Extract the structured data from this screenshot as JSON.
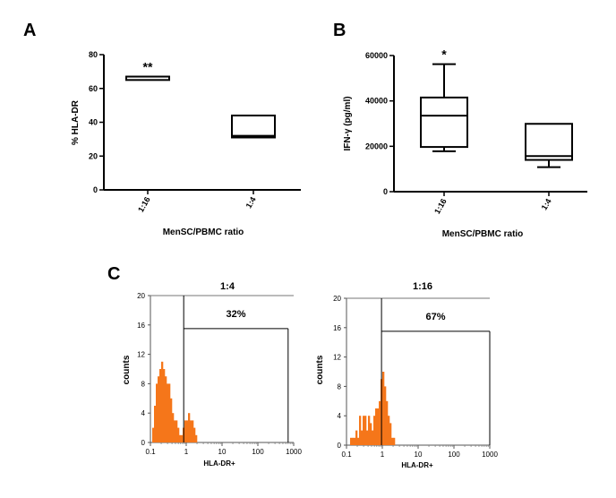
{
  "panels": {
    "a": "A",
    "b": "B",
    "c": "C"
  },
  "chart_data": [
    {
      "id": "A",
      "type": "box",
      "title": "",
      "ylabel": "% HLA-DR",
      "xlabel": "MenSC/PBMC ratio",
      "ylim": [
        0,
        80
      ],
      "yticks": [
        0,
        20,
        40,
        60,
        80
      ],
      "ytick_labels": [
        "0",
        "20",
        "40",
        "60",
        "80"
      ],
      "categories": [
        "1:16",
        "1:4"
      ],
      "boxes": [
        {
          "category": "1:16",
          "min": 65,
          "q1": 65,
          "median": 67,
          "q3": 67,
          "max": 67,
          "annotation": "**"
        },
        {
          "category": "1:4",
          "min": 31,
          "q1": 31,
          "median": 32,
          "q3": 44,
          "max": 44,
          "annotation": ""
        }
      ]
    },
    {
      "id": "B",
      "type": "box",
      "title": "",
      "ylabel": "IFN-γ (pg/ml)",
      "xlabel": "MenSC/PBMC ratio",
      "ylim": [
        0,
        60000
      ],
      "yticks": [
        0,
        20000,
        40000,
        60000
      ],
      "ytick_labels": [
        "0",
        "20000",
        "40000",
        "60000"
      ],
      "categories": [
        "1:16",
        "1:4"
      ],
      "boxes": [
        {
          "category": "1:16",
          "min": 17800,
          "q1": 19700,
          "median": 33500,
          "q3": 41500,
          "max": 56200,
          "annotation": "*"
        },
        {
          "category": "1:4",
          "min": 10800,
          "q1": 14000,
          "median": 15700,
          "q3": 29900,
          "max": 29900,
          "annotation": ""
        }
      ]
    },
    {
      "id": "C1",
      "type": "histogram",
      "title": "1:4",
      "xlabel": "HLA-DR+",
      "ylabel": "counts",
      "xscale": "log",
      "xlim": [
        0.1,
        1000
      ],
      "xtick_labels": [
        "0.1",
        "1",
        "10",
        "100",
        "1000"
      ],
      "ylim": [
        0,
        20
      ],
      "yticks": [
        0,
        4,
        8,
        12,
        16,
        20
      ],
      "ytick_labels": [
        "0",
        "4",
        "8",
        "12",
        "16",
        "20"
      ],
      "gate": {
        "from": 0.85,
        "to": 700,
        "height": 15.5,
        "label": "32%"
      },
      "bins": {
        "log_start": -1,
        "log_width": 0.05,
        "counts": [
          0,
          2,
          5,
          8,
          9,
          10,
          11,
          10,
          9,
          8,
          8,
          6,
          4,
          3,
          3,
          2,
          1,
          1,
          2,
          3,
          3,
          4,
          3,
          3,
          2,
          1,
          0,
          0,
          0,
          0
        ]
      }
    },
    {
      "id": "C2",
      "type": "histogram",
      "title": "1:16",
      "xlabel": "HLA-DR+",
      "ylabel": "counts",
      "xscale": "log",
      "xlim": [
        0.1,
        1000
      ],
      "xtick_labels": [
        "0.1",
        "1",
        "10",
        "100",
        "1000"
      ],
      "ylim": [
        0,
        20
      ],
      "yticks": [
        0,
        4,
        8,
        12,
        16,
        20
      ],
      "ytick_labels": [
        "0",
        "4",
        "8",
        "12",
        "16",
        "20"
      ],
      "gate": {
        "from": 0.95,
        "to": 1000,
        "height": 15.5,
        "label": "67%"
      },
      "bins": {
        "log_start": -1,
        "log_width": 0.05,
        "counts": [
          0,
          0,
          1,
          1,
          1,
          2,
          1,
          4,
          2,
          4,
          4,
          2,
          4,
          3,
          2,
          4,
          5,
          5,
          6,
          9,
          10,
          8,
          6,
          4,
          3,
          1,
          1,
          0,
          0,
          0,
          0,
          0,
          0,
          0,
          0,
          0,
          0,
          0,
          0,
          0
        ]
      }
    }
  ]
}
